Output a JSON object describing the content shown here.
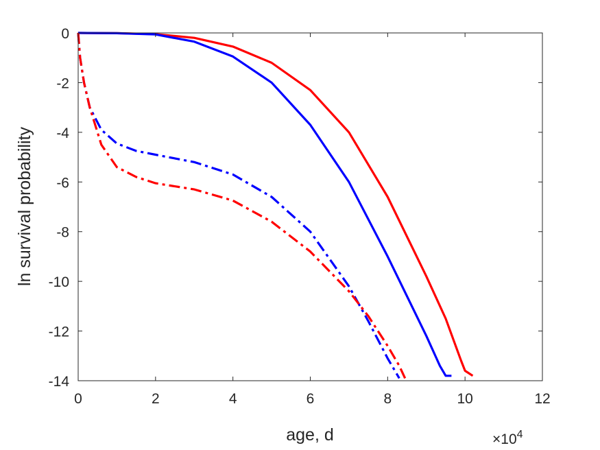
{
  "chart_data": {
    "type": "line",
    "xlabel": "age, d",
    "ylabel": "ln survival probability",
    "x_exponent": {
      "base": "10",
      "power": "4"
    },
    "xlim": [
      0,
      12
    ],
    "ylim": [
      -14,
      0
    ],
    "xticks": [
      {
        "value": 0,
        "label": "0"
      },
      {
        "value": 2,
        "label": "2"
      },
      {
        "value": 4,
        "label": "4"
      },
      {
        "value": 6,
        "label": "6"
      },
      {
        "value": 8,
        "label": "8"
      },
      {
        "value": 10,
        "label": "10"
      },
      {
        "value": 12,
        "label": "12"
      }
    ],
    "yticks": [
      {
        "value": 0,
        "label": "0"
      },
      {
        "value": -2,
        "label": "-2"
      },
      {
        "value": -4,
        "label": "-4"
      },
      {
        "value": -6,
        "label": "-6"
      },
      {
        "value": -8,
        "label": "-8"
      },
      {
        "value": -10,
        "label": "-10"
      },
      {
        "value": -12,
        "label": "-12"
      },
      {
        "value": -14,
        "label": "-14"
      }
    ],
    "grid": false,
    "series": [
      {
        "color": "#ff0000",
        "linestyle": "solid",
        "points": [
          [
            0,
            0
          ],
          [
            1,
            -0.01
          ],
          [
            2,
            -0.05
          ],
          [
            3,
            -0.2
          ],
          [
            4,
            -0.55
          ],
          [
            5,
            -1.2
          ],
          [
            6,
            -2.3
          ],
          [
            7,
            -4.0
          ],
          [
            8,
            -6.6
          ],
          [
            9,
            -9.8
          ],
          [
            9.5,
            -11.5
          ],
          [
            9.9,
            -13.2
          ],
          [
            10.0,
            -13.6
          ],
          [
            10.1,
            -13.7
          ],
          [
            10.2,
            -13.8
          ]
        ]
      },
      {
        "color": "#0000ff",
        "linestyle": "solid",
        "points": [
          [
            0,
            0
          ],
          [
            1,
            -0.01
          ],
          [
            2,
            -0.06
          ],
          [
            3,
            -0.35
          ],
          [
            4,
            -0.95
          ],
          [
            5,
            -2.0
          ],
          [
            6,
            -3.7
          ],
          [
            7,
            -6.0
          ],
          [
            8,
            -9.0
          ],
          [
            9,
            -12.2
          ],
          [
            9.35,
            -13.4
          ],
          [
            9.5,
            -13.8
          ],
          [
            9.65,
            -13.8
          ]
        ]
      },
      {
        "color": "#0000ff",
        "linestyle": "dashdot",
        "points": [
          [
            0,
            0
          ],
          [
            0.05,
            -1.0
          ],
          [
            0.15,
            -2.0
          ],
          [
            0.3,
            -3.0
          ],
          [
            0.6,
            -3.9
          ],
          [
            1.0,
            -4.45
          ],
          [
            1.5,
            -4.75
          ],
          [
            2.0,
            -4.9
          ],
          [
            3.0,
            -5.2
          ],
          [
            4.0,
            -5.7
          ],
          [
            5.0,
            -6.6
          ],
          [
            6.0,
            -8.0
          ],
          [
            7.0,
            -10.2
          ],
          [
            7.5,
            -11.6
          ],
          [
            8.0,
            -13.1
          ],
          [
            8.3,
            -13.9
          ]
        ]
      },
      {
        "color": "#ff0000",
        "linestyle": "dashdot",
        "points": [
          [
            0,
            0
          ],
          [
            0.05,
            -1.0
          ],
          [
            0.15,
            -2.0
          ],
          [
            0.3,
            -3.0
          ],
          [
            0.6,
            -4.5
          ],
          [
            1.0,
            -5.4
          ],
          [
            1.5,
            -5.8
          ],
          [
            2.0,
            -6.05
          ],
          [
            3.0,
            -6.3
          ],
          [
            4.0,
            -6.75
          ],
          [
            5.0,
            -7.6
          ],
          [
            6.0,
            -8.8
          ],
          [
            7.0,
            -10.4
          ],
          [
            7.5,
            -11.4
          ],
          [
            8.0,
            -12.6
          ],
          [
            8.3,
            -13.4
          ],
          [
            8.45,
            -13.9
          ]
        ]
      }
    ]
  }
}
